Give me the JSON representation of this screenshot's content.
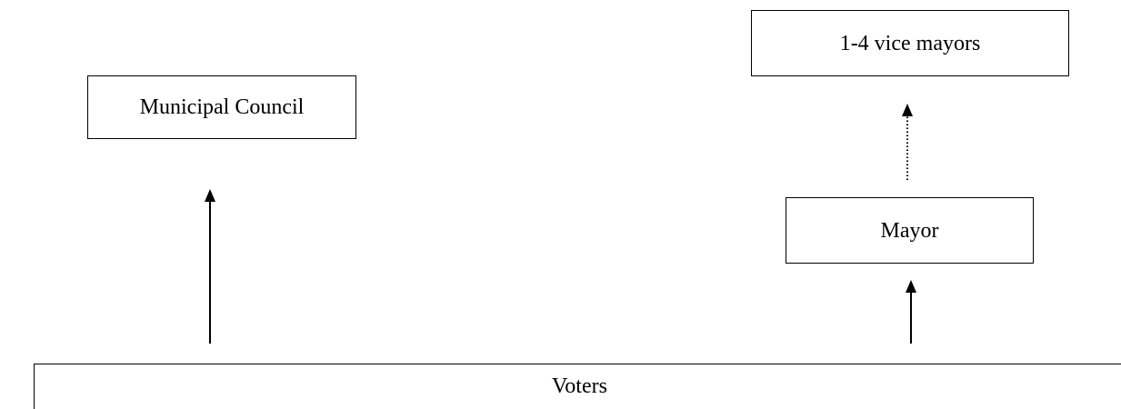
{
  "diagram": {
    "nodes": {
      "municipal_council": "Municipal Council",
      "vice_mayors": "1-4 vice mayors",
      "mayor": "Mayor",
      "voters": "Voters"
    },
    "edges": [
      {
        "from": "voters",
        "to": "municipal_council",
        "style": "solid"
      },
      {
        "from": "voters",
        "to": "mayor",
        "style": "solid"
      },
      {
        "from": "mayor",
        "to": "vice_mayors",
        "style": "dotted"
      }
    ],
    "colors": {
      "line": "#000000",
      "box_border": "#000000",
      "background": "#ffffff"
    }
  }
}
